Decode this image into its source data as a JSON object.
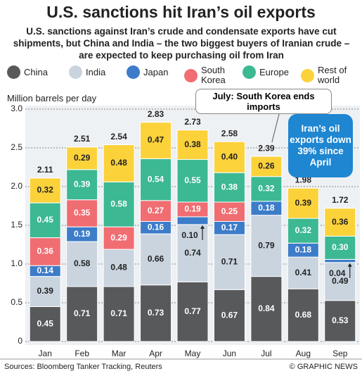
{
  "chart_data": {
    "type": "stacked_bar",
    "title": "U.S. sanctions hit Iran’s oil exports",
    "subtitle": "U.S. sanctions against Iran’s crude and condensate exports have cut shipments, but China and India – the two biggest buyers of Iranian crude – are expected to keep purchasing oil from Iran",
    "y_label": "Million barrels per day",
    "categories": [
      "Jan",
      "Feb",
      "Mar",
      "Apr",
      "May",
      "Jun",
      "Jul",
      "Aug",
      "Sep"
    ],
    "series": [
      {
        "name": "China",
        "color": "#58595b",
        "values": [
          0.45,
          0.71,
          0.71,
          0.73,
          0.77,
          0.67,
          0.84,
          0.68,
          0.53
        ],
        "value_labels": [
          "0.45",
          "0.71",
          "0.71",
          "0.73",
          "0.77",
          "0.67",
          "0.84",
          "0.68",
          "0.53"
        ]
      },
      {
        "name": "India",
        "color": "#c9d4df",
        "values": [
          0.39,
          0.58,
          0.48,
          0.66,
          0.74,
          0.71,
          0.79,
          0.41,
          0.49
        ],
        "value_labels": [
          "0.39",
          "0.58",
          "0.48",
          "0.66",
          "0.74",
          "0.71",
          "0.79",
          "0.41",
          "0.49"
        ]
      },
      {
        "name": "Japan",
        "color": "#3d7cc9",
        "values": [
          0.14,
          0.19,
          null,
          0.16,
          0.1,
          0.17,
          0.18,
          0.18,
          0.04
        ],
        "value_labels": [
          "0.14",
          "0.19",
          null,
          "0.16",
          "0.10",
          "0.17",
          "0.18",
          "0.18",
          "0.04"
        ]
      },
      {
        "name": "South Korea",
        "color": "#f06d72",
        "values": [
          0.36,
          0.35,
          0.29,
          0.27,
          0.19,
          0.25,
          null,
          null,
          null
        ],
        "value_labels": [
          "0.36",
          "0.35",
          "0.29",
          "0.27",
          "0.19",
          "0.25",
          null,
          null,
          null
        ]
      },
      {
        "name": "Europe",
        "color": "#3cb893",
        "values": [
          0.45,
          0.39,
          0.58,
          0.54,
          0.55,
          0.38,
          0.32,
          0.32,
          0.3
        ],
        "value_labels": [
          "0.45",
          "0.39",
          "0.58",
          "0.54",
          "0.55",
          "0.38",
          "0.32",
          "0.32",
          "0.30"
        ]
      },
      {
        "name": "Rest of world",
        "color": "#fcd23b",
        "values": [
          0.32,
          0.29,
          0.48,
          0.47,
          0.38,
          0.4,
          0.26,
          0.39,
          0.36
        ],
        "value_labels": [
          "0.32",
          "0.29",
          "0.48",
          "0.47",
          "0.38",
          "0.40",
          "0.26",
          "0.39",
          "0.36"
        ]
      }
    ],
    "totals": [
      2.11,
      2.51,
      2.54,
      2.83,
      2.73,
      2.58,
      2.39,
      1.98,
      1.72
    ],
    "ylim": [
      0,
      3.0
    ],
    "yticks": [
      0,
      0.5,
      {
        "value": 1.0,
        "label": "1.0"
      },
      1.5,
      {
        "value": 2.0,
        "label": "2.0"
      },
      2.5,
      {
        "value": 3.0,
        "label": "3.0"
      }
    ],
    "grid": true,
    "annotations": [
      "July: South Korea ends imports",
      "Iran’s oil exports down 39% since April"
    ],
    "source": "Sources: Bloomberg Tanker Tracking, Reuters",
    "credit": "© GRAPHIC NEWS"
  }
}
